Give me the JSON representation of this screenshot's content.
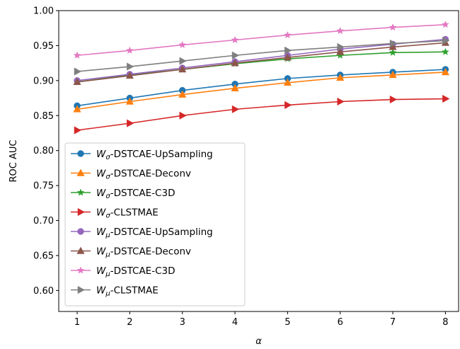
{
  "chart_data": {
    "type": "line",
    "title": "",
    "xlabel": "α",
    "ylabel": "ROC AUC",
    "x": [
      1,
      2,
      3,
      4,
      5,
      6,
      7,
      8
    ],
    "xticks": [
      "1",
      "2",
      "3",
      "4",
      "5",
      "6",
      "7",
      "8"
    ],
    "yticks": [
      "0.60",
      "0.65",
      "0.70",
      "0.75",
      "0.80",
      "0.85",
      "0.90",
      "0.95",
      "1.00"
    ],
    "xlim": [
      0.65,
      8.25
    ],
    "ylim": [
      0.57,
      1.0
    ],
    "grid": false,
    "legend_position": "lower-left",
    "series": [
      {
        "prefix": "W",
        "sub": "σ",
        "suffix": "-DSTCAE-UpSampling",
        "color": "#1f77b4",
        "marker": "circle",
        "values": [
          0.864,
          0.875,
          0.886,
          0.895,
          0.903,
          0.908,
          0.912,
          0.916
        ]
      },
      {
        "prefix": "W",
        "sub": "σ",
        "suffix": "-DSTCAE-Deconv",
        "color": "#ff7f0e",
        "marker": "triangle-up",
        "values": [
          0.859,
          0.87,
          0.88,
          0.889,
          0.897,
          0.904,
          0.908,
          0.912
        ]
      },
      {
        "prefix": "W",
        "sub": "σ",
        "suffix": "-DSTCAE-C3D",
        "color": "#2ca02c",
        "marker": "star",
        "values": [
          0.898,
          0.908,
          0.916,
          0.924,
          0.931,
          0.936,
          0.94,
          0.941
        ]
      },
      {
        "prefix": "W",
        "sub": "σ",
        "suffix": "-CLSTMAE",
        "color": "#d62728",
        "marker": "triangle-right",
        "values": [
          0.829,
          0.839,
          0.85,
          0.859,
          0.865,
          0.87,
          0.873,
          0.874
        ]
      },
      {
        "prefix": "W",
        "sub": "μ",
        "suffix": "-DSTCAE-UpSampling",
        "color": "#9467bd",
        "marker": "circle",
        "values": [
          0.9,
          0.909,
          0.918,
          0.927,
          0.936,
          0.945,
          0.952,
          0.959
        ]
      },
      {
        "prefix": "W",
        "sub": "μ",
        "suffix": "-DSTCAE-Deconv",
        "color": "#8c564b",
        "marker": "triangle-up",
        "values": [
          0.898,
          0.907,
          0.916,
          0.925,
          0.933,
          0.941,
          0.948,
          0.954
        ]
      },
      {
        "prefix": "W",
        "sub": "μ",
        "suffix": "-DSTCAE-C3D",
        "color": "#e377c2",
        "marker": "star",
        "values": [
          0.936,
          0.943,
          0.951,
          0.958,
          0.965,
          0.971,
          0.976,
          0.98
        ]
      },
      {
        "prefix": "W",
        "sub": "μ",
        "suffix": "-CLSTMAE",
        "color": "#7f7f7f",
        "marker": "triangle-right",
        "values": [
          0.913,
          0.92,
          0.928,
          0.936,
          0.943,
          0.948,
          0.953,
          0.957
        ]
      }
    ]
  }
}
